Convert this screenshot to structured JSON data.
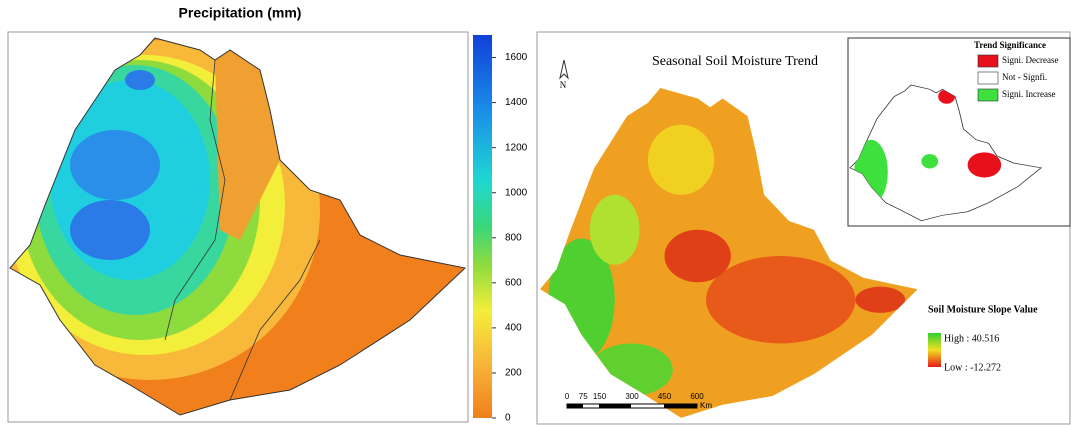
{
  "left_map": {
    "title": "Precipitation (mm)",
    "colorbar": {
      "lim": [
        0,
        1700
      ],
      "ticks": [
        0,
        200,
        400,
        600,
        800,
        1000,
        1200,
        1400,
        1600
      ]
    }
  },
  "right_map": {
    "title": "Seasonal Soil Moisture Trend",
    "north": "N",
    "scale_bar": {
      "ticks": [
        0,
        75,
        150,
        300,
        450,
        600
      ],
      "unit": "Km"
    },
    "inset": {
      "title": "Trend Significance",
      "legend": [
        {
          "label": "Signi. Decrease",
          "color": "#e8101a"
        },
        {
          "label": "Not - Signfi.",
          "color": "#ffffff"
        },
        {
          "label": "Signi. Increase",
          "color": "#3ee03e"
        }
      ]
    },
    "legend": {
      "title": "Soil Moisture Slope Value",
      "high": "High : 40.516",
      "low": "Low : -12.272"
    }
  }
}
